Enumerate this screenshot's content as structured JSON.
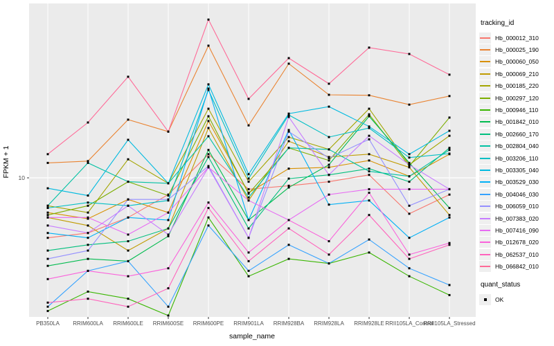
{
  "chart_data": {
    "type": "line",
    "title": "",
    "xlabel": "sample_name",
    "ylabel": "FPKM + 1",
    "y_scale": "log10",
    "ylim": [
      1.5,
      95
    ],
    "y_tick_labels": [
      "10"
    ],
    "grid": "on",
    "legend_position": "right",
    "point_marker": "black-square",
    "categories": [
      "PB350LA",
      "RRIM600LA",
      "RRIM600LE",
      "RRIM600SE",
      "RRIM600PE",
      "RRIM901LA",
      "RRIM928BA",
      "RRIM928LA",
      "RRIM928LE",
      "RRII105LA_Control",
      "RRII105LA_Stressed"
    ],
    "series": [
      {
        "name": "Hb_000012_310",
        "color": "#F8766D",
        "values": [
          4.5,
          4.8,
          5.9,
          8.0,
          13.7,
          8.6,
          9.0,
          9.5,
          10.4,
          6.2,
          8.0
        ]
      },
      {
        "name": "Hb_000025_190",
        "color": "#EA8331",
        "values": [
          12.2,
          12.5,
          21.7,
          18.5,
          58.1,
          20.1,
          45.7,
          30.2,
          30.0,
          26.5,
          29.7
        ]
      },
      {
        "name": "Hb_000060_050",
        "color": "#D89000",
        "values": [
          6.3,
          5.8,
          7.5,
          6.3,
          21.3,
          8.2,
          11.3,
          11.5,
          12.6,
          10.2,
          13.7
        ]
      },
      {
        "name": "Hb_000069_210",
        "color": "#C09B00",
        "values": [
          5.9,
          5.3,
          3.8,
          5.1,
          19.4,
          7.4,
          16.3,
          13.2,
          13.7,
          11.5,
          6.1
        ]
      },
      {
        "name": "Hb_000185_220",
        "color": "#A3A500",
        "values": [
          6.9,
          6.3,
          12.8,
          9.3,
          25.1,
          9.5,
          17.2,
          14.6,
          25.1,
          11.9,
          17.5
        ]
      },
      {
        "name": "Hb_000297_120",
        "color": "#7CAE00",
        "values": [
          6.1,
          6.9,
          9.5,
          7.9,
          22.7,
          8.1,
          14.9,
          12.6,
          23.3,
          11.7,
          22.3
        ]
      },
      {
        "name": "Hb_000946_110",
        "color": "#39B600",
        "values": [
          1.7,
          2.2,
          2.0,
          1.6,
          5.9,
          2.7,
          3.4,
          3.2,
          3.7,
          2.7,
          2.1
        ]
      },
      {
        "name": "Hb_001842_010",
        "color": "#00BB4E",
        "values": [
          3.1,
          3.4,
          3.3,
          4.6,
          14.5,
          5.7,
          8.8,
          11.9,
          22.7,
          12.2,
          6.7
        ]
      },
      {
        "name": "Hb_002660_170",
        "color": "#00BF7D",
        "values": [
          3.8,
          4.1,
          4.3,
          5.1,
          13.2,
          5.1,
          9.9,
          10.4,
          11.3,
          9.5,
          14.9
        ]
      },
      {
        "name": "Hb_002804_040",
        "color": "#00C1A3",
        "values": [
          6.9,
          12.2,
          9.5,
          9.3,
          17.4,
          7.7,
          14.9,
          14.6,
          10.9,
          10.2,
          14.5
        ]
      },
      {
        "name": "Hb_003206_110",
        "color": "#00BFC4",
        "values": [
          6.7,
          7.2,
          6.9,
          7.4,
          32.2,
          9.9,
          23.1,
          17.2,
          19.4,
          13.1,
          13.8
        ]
      },
      {
        "name": "Hb_003305_040",
        "color": "#00BAE0",
        "values": [
          8.7,
          7.9,
          16.6,
          9.3,
          34.7,
          10.5,
          23.5,
          25.8,
          19.8,
          13.7,
          18.7
        ]
      },
      {
        "name": "Hb_003529_030",
        "color": "#00B0F6",
        "values": [
          4.8,
          4.5,
          5.9,
          5.7,
          32.8,
          5.7,
          18.9,
          7.0,
          7.4,
          4.5,
          5.9
        ]
      },
      {
        "name": "Hb_004046_030",
        "color": "#35A2FF",
        "values": [
          1.8,
          2.9,
          3.3,
          1.8,
          5.3,
          2.9,
          4.1,
          3.2,
          4.4,
          3.0,
          2.4
        ]
      },
      {
        "name": "Hb_006059_010",
        "color": "#9590FF",
        "values": [
          3.4,
          3.8,
          7.5,
          7.5,
          11.7,
          4.5,
          18.5,
          13.0,
          16.7,
          6.9,
          8.6
        ]
      },
      {
        "name": "Hb_007383_020",
        "color": "#C77CFF",
        "values": [
          5.3,
          4.8,
          6.9,
          4.7,
          11.5,
          4.5,
          22.5,
          10.4,
          17.5,
          11.9,
          8.6
        ]
      },
      {
        "name": "Hb_007416_090",
        "color": "#E76BF3",
        "values": [
          5.9,
          5.9,
          4.7,
          6.3,
          11.5,
          7.4,
          5.7,
          8.0,
          8.6,
          8.6,
          8.6
        ]
      },
      {
        "name": "Hb_012678_020",
        "color": "#FA62DB",
        "values": [
          2.6,
          2.9,
          2.7,
          3.0,
          7.2,
          3.7,
          5.7,
          4.3,
          8.2,
          3.6,
          4.2
        ]
      },
      {
        "name": "Hb_062537_010",
        "color": "#FF62BC",
        "values": [
          1.9,
          2.0,
          1.8,
          2.3,
          6.7,
          3.3,
          5.1,
          3.6,
          6.1,
          3.4,
          4.1
        ]
      },
      {
        "name": "Hb_066842_010",
        "color": "#FF6A98",
        "values": [
          13.7,
          20.9,
          38.4,
          18.5,
          82.2,
          28.6,
          49.2,
          35.0,
          56.6,
          52.0,
          39.5
        ]
      }
    ],
    "legend": {
      "title": "tracking_id",
      "quant_title": "quant_status",
      "quant_value": "OK"
    },
    "colors": {
      "panel_background": "#EBEBEB",
      "gridline": "#FFFFFF",
      "tick_text": "#4D4D4D",
      "point": "#000000",
      "legend_key_background": "#EFEFEF"
    }
  }
}
